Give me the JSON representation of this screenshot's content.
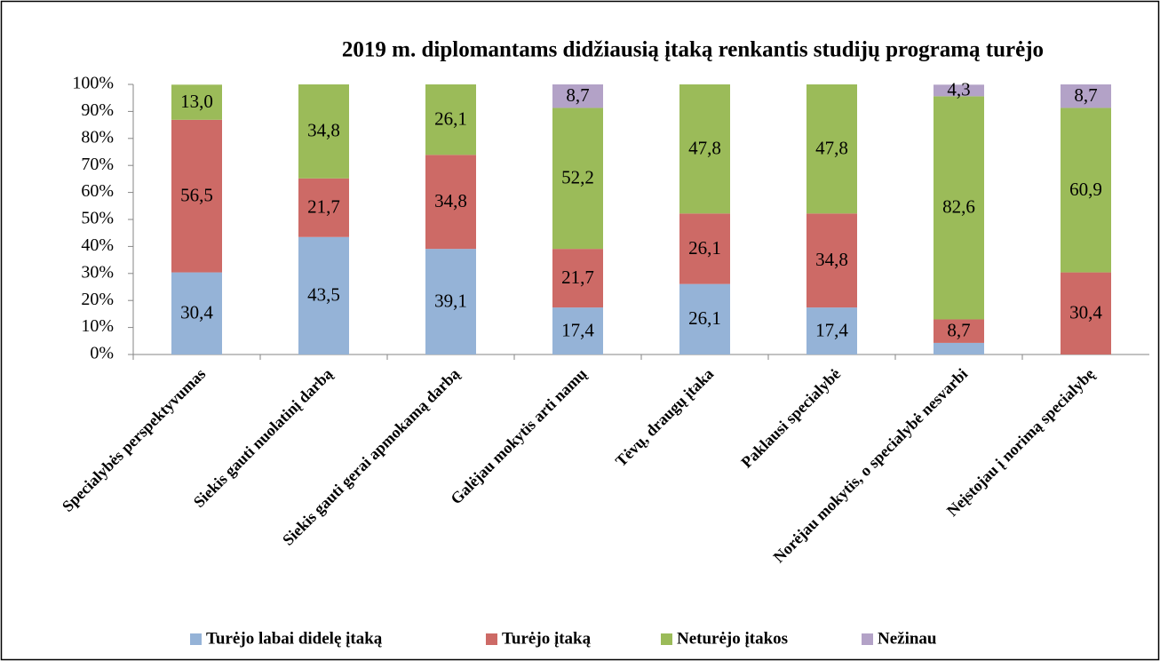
{
  "chart_data": {
    "type": "stacked_bar_100",
    "title": "2019 m. diplomantams didžiausią įtaką renkantis studijų programą turėjo",
    "categories": [
      "Specialybės perspektyvumas",
      "Siekis gauti nuolatinį darbą",
      "Siekis gauti gerai apmokamą darbą",
      "Galėjau mokytis arti namų",
      "Tėvų, draugų įtaka",
      "Paklausi specialybė",
      "Norėjau mokytis, o specialybė nesvarbi",
      "Neįstojau į norimą specialybę"
    ],
    "series": [
      {
        "name": "Turėjo labai didelę įtaką",
        "color": "#95b3d7",
        "values": [
          30.4,
          43.5,
          39.1,
          17.4,
          26.1,
          17.4,
          4.3,
          0
        ],
        "value_labels": [
          "30,4",
          "43,5",
          "39,1",
          "17,4",
          "26,1",
          "17,4",
          null,
          null
        ]
      },
      {
        "name": "Turėjo įtaką",
        "color": "#cd6a66",
        "values": [
          56.5,
          21.7,
          34.8,
          21.7,
          26.1,
          34.8,
          8.7,
          30.4
        ],
        "value_labels": [
          "56,5",
          "21,7",
          "34,8",
          "21,7",
          "26,1",
          "34,8",
          "8,7",
          "30,4"
        ]
      },
      {
        "name": "Neturėjo įtakos",
        "color": "#9bbb59",
        "values": [
          13.0,
          34.8,
          26.1,
          52.2,
          47.8,
          47.8,
          82.6,
          60.9
        ],
        "value_labels": [
          "13,0",
          "34,8",
          "26,1",
          "52,2",
          "47,8",
          "47,8",
          "82,6",
          "60,9"
        ]
      },
      {
        "name": "Nežinau",
        "color": "#b3a2c7",
        "values": [
          0,
          0,
          0,
          8.7,
          0,
          0,
          4.3,
          8.7
        ],
        "value_labels": [
          null,
          null,
          null,
          "8,7",
          null,
          null,
          "4,3",
          "8,7"
        ]
      }
    ],
    "ylim": [
      0,
      100
    ],
    "yticks": [
      {
        "value": 0,
        "label": "0%"
      },
      {
        "value": 10,
        "label": "10%"
      },
      {
        "value": 20,
        "label": "20%"
      },
      {
        "value": 30,
        "label": "30%"
      },
      {
        "value": 40,
        "label": "40%"
      },
      {
        "value": 50,
        "label": "50%"
      },
      {
        "value": 60,
        "label": "60%"
      },
      {
        "value": 70,
        "label": "70%"
      },
      {
        "value": 80,
        "label": "80%"
      },
      {
        "value": 90,
        "label": "90%"
      },
      {
        "value": 100,
        "label": "100%"
      }
    ],
    "grid": false,
    "legend": "bottom"
  }
}
